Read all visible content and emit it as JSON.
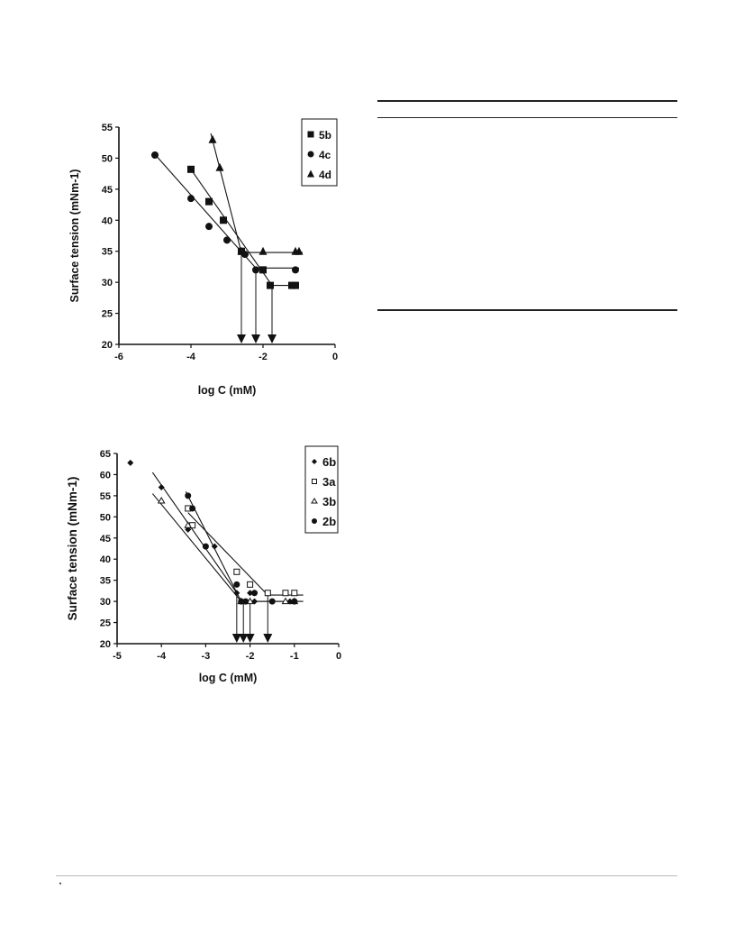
{
  "chart_data": [
    {
      "type": "scatter",
      "ylabel": "Surface tension (mNm-1)",
      "xlabel": "log C (mM)",
      "xlim": [
        -6,
        0
      ],
      "ylim": [
        20,
        55
      ],
      "xticks": [
        -6,
        -4,
        -2,
        0
      ],
      "yticks": [
        20,
        25,
        30,
        35,
        40,
        45,
        50,
        55
      ],
      "legend_position": "top-right",
      "series": [
        {
          "name": "5b",
          "marker": "square",
          "x": [
            -4.0,
            -3.5,
            -3.1,
            -2.6,
            -2.0,
            -1.8,
            -1.2,
            -1.1
          ],
          "y": [
            48.2,
            43.0,
            40.0,
            35.0,
            32.0,
            29.5,
            29.5,
            29.5
          ],
          "fit_lines": [
            {
              "x": [
                -4.05,
                -1.75
              ],
              "y": [
                48.6,
                29.5
              ]
            },
            {
              "x": [
                -1.75,
                -1.0
              ],
              "y": [
                29.5,
                29.5
              ]
            }
          ]
        },
        {
          "name": "4c",
          "marker": "circle",
          "x": [
            -5.0,
            -4.0,
            -3.5,
            -3.0,
            -2.5,
            -2.2,
            -1.1
          ],
          "y": [
            50.5,
            43.5,
            39.0,
            36.8,
            34.5,
            32.0,
            32.0
          ],
          "fit_lines": [
            {
              "x": [
                -5.0,
                -2.2
              ],
              "y": [
                50.6,
                32.3
              ]
            },
            {
              "x": [
                -2.2,
                -1.0
              ],
              "y": [
                32.3,
                32.3
              ]
            }
          ]
        },
        {
          "name": "4d",
          "marker": "triangle",
          "x": [
            -3.4,
            -3.2,
            -2.6,
            -2.0,
            -1.1,
            -1.0
          ],
          "y": [
            53.0,
            48.5,
            35.0,
            35.0,
            35.0,
            35.0
          ],
          "fit_lines": [
            {
              "x": [
                -3.45,
                -2.6
              ],
              "y": [
                54.0,
                34.8
              ]
            },
            {
              "x": [
                -2.6,
                -0.9
              ],
              "y": [
                34.8,
                34.8
              ]
            }
          ]
        }
      ],
      "cmc_arrows": [
        -2.6,
        -2.2,
        -1.75
      ]
    },
    {
      "type": "scatter",
      "ylabel": "Surface tension (mNm-1)",
      "xlabel": "log C (mM)",
      "xlim": [
        -5,
        0
      ],
      "ylim": [
        20,
        65
      ],
      "xticks": [
        -5,
        -4,
        -3,
        -2,
        -1,
        0
      ],
      "yticks": [
        20,
        25,
        30,
        35,
        40,
        45,
        50,
        55,
        60,
        65
      ],
      "legend_position": "top-right",
      "series": [
        {
          "name": "6b",
          "marker": "diamond",
          "x": [
            -4.7,
            -4.0,
            -3.4,
            -2.8,
            -2.3,
            -2.0,
            -1.9,
            -1.1,
            -1.0
          ],
          "y": [
            62.8,
            57.0,
            47.0,
            43.0,
            32.0,
            32.0,
            30.0,
            30.0,
            30.0
          ],
          "fit_lines": [
            {
              "x": [
                -4.2,
                -2.3
              ],
              "y": [
                60.5,
                32.0
              ]
            }
          ]
        },
        {
          "name": "3a",
          "marker": "open-square",
          "x": [
            -3.4,
            -3.3,
            -2.3,
            -2.0,
            -1.6,
            -1.2,
            -1.0
          ],
          "y": [
            52.0,
            48.0,
            37.0,
            34.0,
            32.0,
            32.0,
            32.0
          ],
          "fit_lines": [
            {
              "x": [
                -3.4,
                -1.6
              ],
              "y": [
                51.0,
                31.5
              ]
            },
            {
              "x": [
                -1.6,
                -0.8
              ],
              "y": [
                31.5,
                31.5
              ]
            }
          ]
        },
        {
          "name": "3b",
          "marker": "open-triangle",
          "x": [
            -4.0,
            -3.4,
            -2.2,
            -2.0,
            -1.2,
            -1.0
          ],
          "y": [
            53.8,
            48.0,
            30.0,
            30.0,
            30.0,
            30.0
          ],
          "fit_lines": [
            {
              "x": [
                -4.2,
                -2.2
              ],
              "y": [
                55.5,
                30.0
              ]
            },
            {
              "x": [
                -2.2,
                -0.8
              ],
              "y": [
                30.0,
                30.0
              ]
            }
          ]
        },
        {
          "name": "2b",
          "marker": "circle",
          "x": [
            -3.4,
            -3.3,
            -3.0,
            -2.3,
            -2.2,
            -2.1,
            -1.9,
            -1.5,
            -1.0
          ],
          "y": [
            55.0,
            52.0,
            43.0,
            34.0,
            30.0,
            30.0,
            32.0,
            30.0,
            30.0
          ],
          "fit_lines": [
            {
              "x": [
                -3.45,
                -2.2
              ],
              "y": [
                56.0,
                30.0
              ]
            },
            {
              "x": [
                -2.2,
                -0.9
              ],
              "y": [
                30.0,
                30.0
              ]
            }
          ]
        }
      ],
      "cmc_arrows": [
        -2.3,
        -2.15,
        -2.0,
        -1.6
      ]
    }
  ],
  "table": {}
}
